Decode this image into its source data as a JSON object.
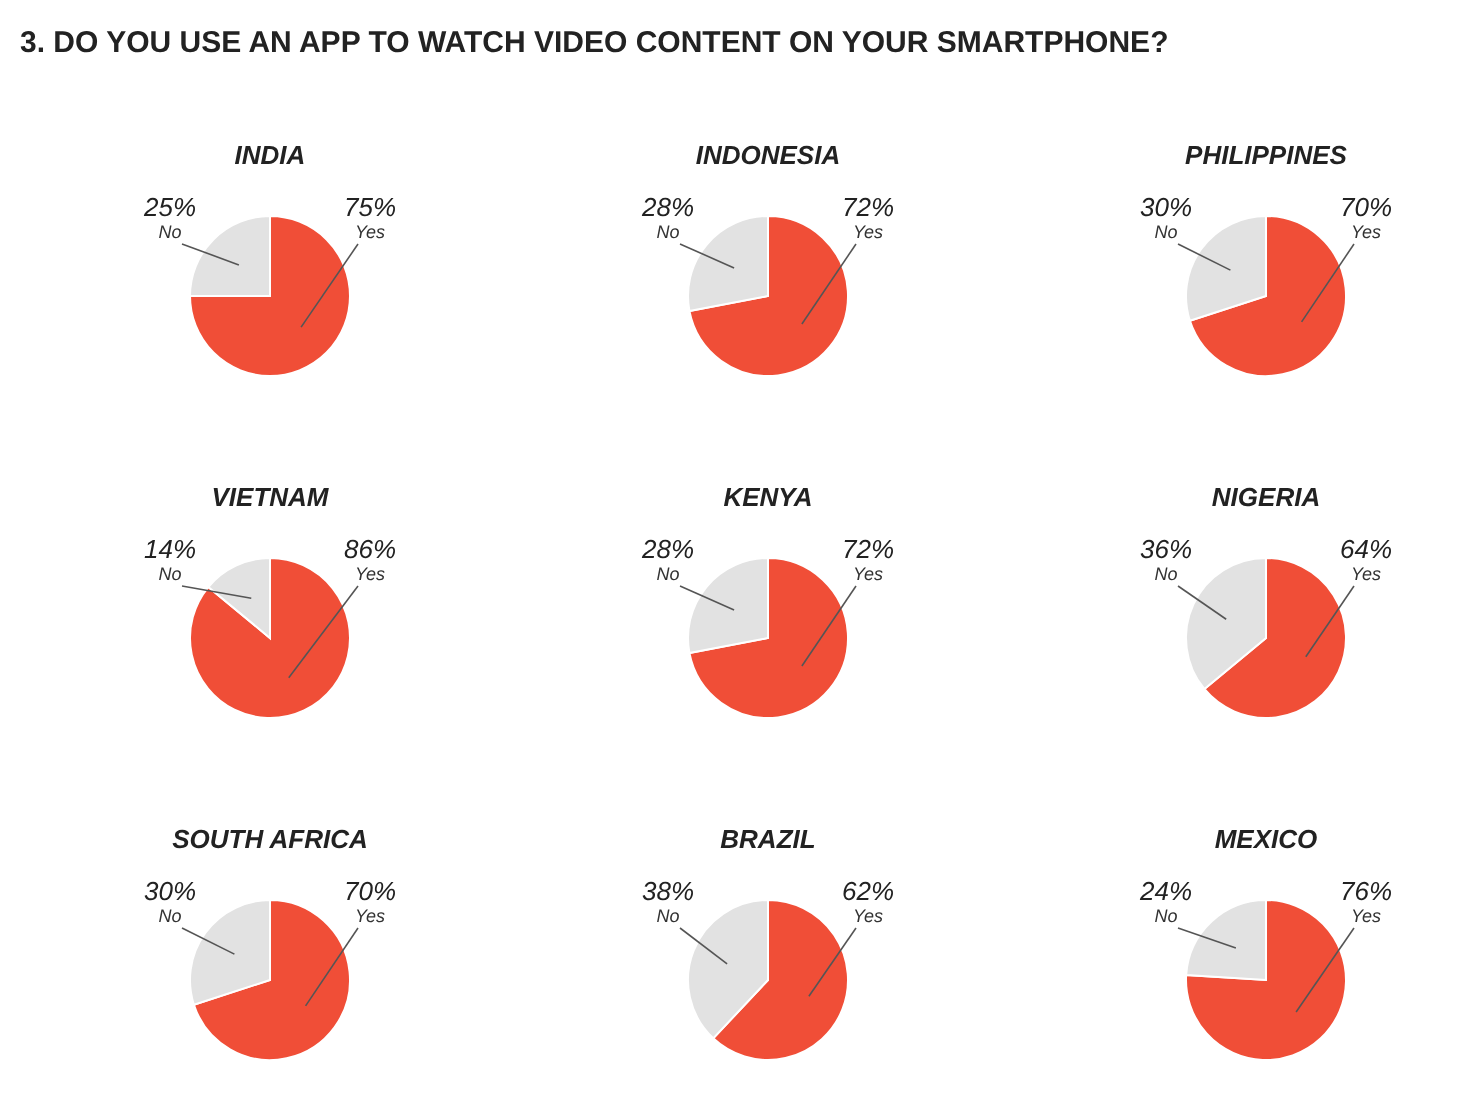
{
  "chart_data": [
    {
      "type": "pie",
      "title": "INDIA",
      "annotations": [
        "3. DO YOU USE AN APP TO WATCH VIDEO CONTENT ON YOUR SMARTPHONE?"
      ],
      "categories": [
        "Yes",
        "No"
      ],
      "values": [
        75,
        25
      ],
      "value_labels": [
        "75%",
        "25%"
      ],
      "colors": [
        "#f04e37",
        "#e2e2e2"
      ]
    },
    {
      "type": "pie",
      "title": "INDONESIA",
      "categories": [
        "Yes",
        "No"
      ],
      "values": [
        72,
        28
      ],
      "value_labels": [
        "72%",
        "28%"
      ],
      "colors": [
        "#f04e37",
        "#e2e2e2"
      ]
    },
    {
      "type": "pie",
      "title": "PHILIPPINES",
      "categories": [
        "Yes",
        "No"
      ],
      "values": [
        70,
        30
      ],
      "value_labels": [
        "70%",
        "30%"
      ],
      "colors": [
        "#f04e37",
        "#e2e2e2"
      ]
    },
    {
      "type": "pie",
      "title": "VIETNAM",
      "categories": [
        "Yes",
        "No"
      ],
      "values": [
        86,
        14
      ],
      "value_labels": [
        "86%",
        "14%"
      ],
      "colors": [
        "#f04e37",
        "#e2e2e2"
      ]
    },
    {
      "type": "pie",
      "title": "KENYA",
      "categories": [
        "Yes",
        "No"
      ],
      "values": [
        72,
        28
      ],
      "value_labels": [
        "72%",
        "28%"
      ],
      "colors": [
        "#f04e37",
        "#e2e2e2"
      ]
    },
    {
      "type": "pie",
      "title": "NIGERIA",
      "categories": [
        "Yes",
        "No"
      ],
      "values": [
        64,
        36
      ],
      "value_labels": [
        "64%",
        "36%"
      ],
      "colors": [
        "#f04e37",
        "#e2e2e2"
      ]
    },
    {
      "type": "pie",
      "title": "SOUTH AFRICA",
      "categories": [
        "Yes",
        "No"
      ],
      "values": [
        70,
        30
      ],
      "value_labels": [
        "70%",
        "30%"
      ],
      "colors": [
        "#f04e37",
        "#e2e2e2"
      ]
    },
    {
      "type": "pie",
      "title": "BRAZIL",
      "categories": [
        "Yes",
        "No"
      ],
      "values": [
        62,
        38
      ],
      "value_labels": [
        "62%",
        "38%"
      ],
      "colors": [
        "#f04e37",
        "#e2e2e2"
      ]
    },
    {
      "type": "pie",
      "title": "MEXICO",
      "categories": [
        "Yes",
        "No"
      ],
      "values": [
        76,
        24
      ],
      "value_labels": [
        "76%",
        "24%"
      ],
      "colors": [
        "#f04e37",
        "#e2e2e2"
      ]
    }
  ]
}
